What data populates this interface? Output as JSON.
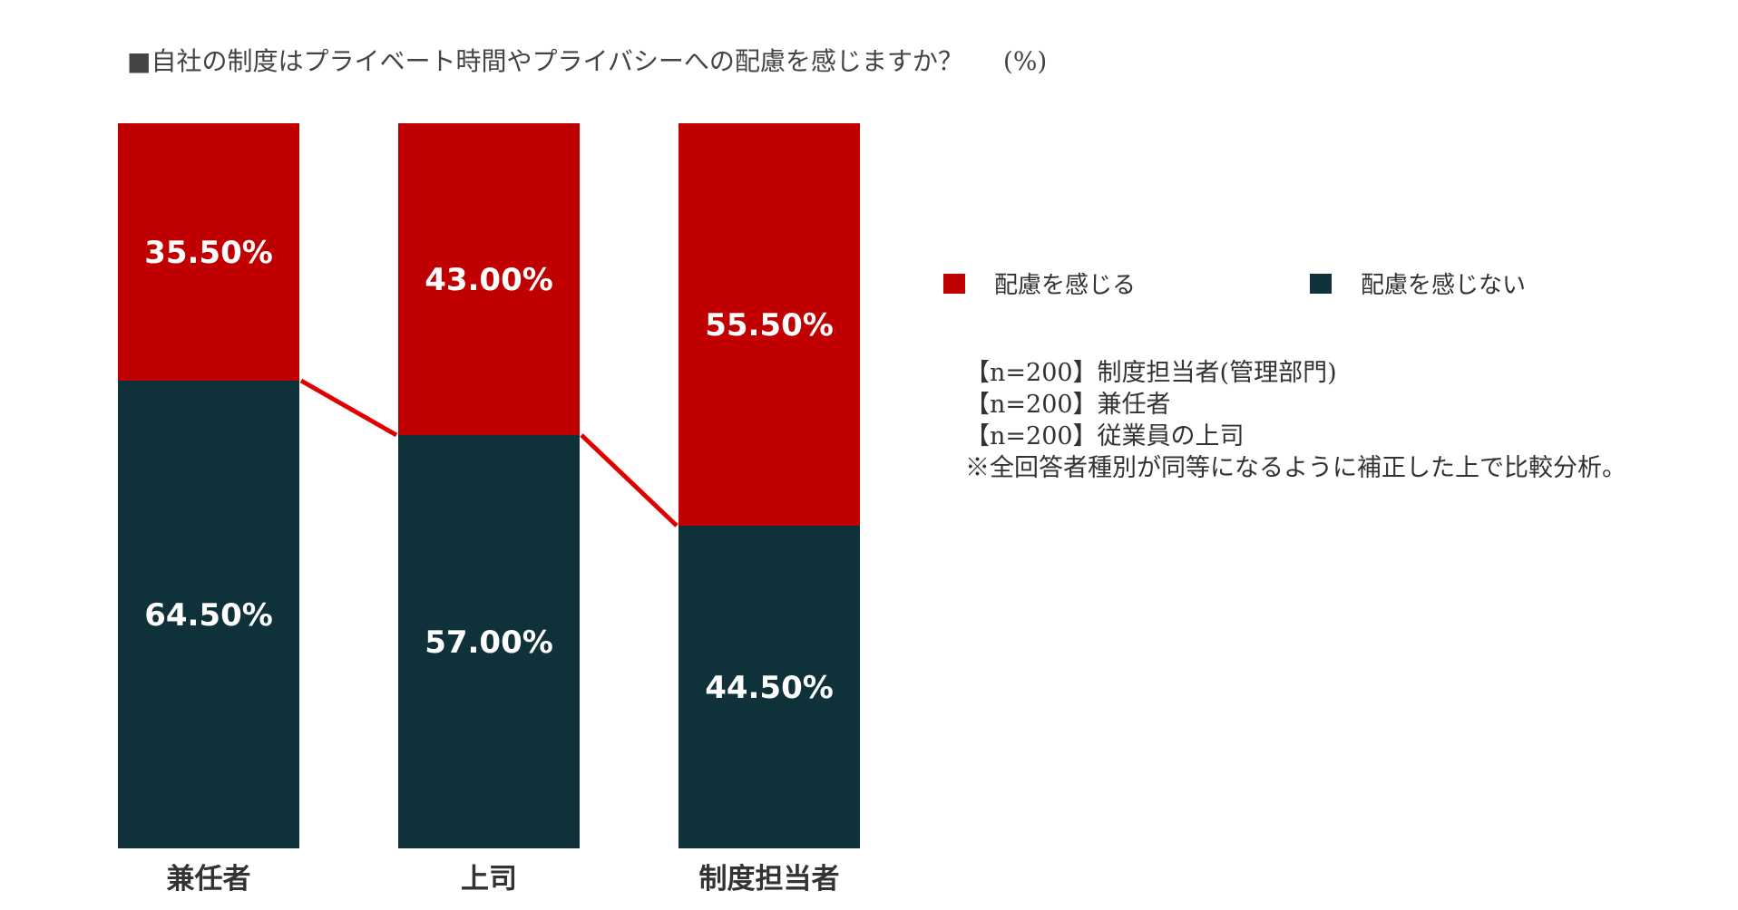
{
  "title": "■自社の制度はプライベート時間やプライバシーへの配慮を感じますか？",
  "unit": "(%)",
  "colors": {
    "feel": "#c00000",
    "not_feel": "#0f313a",
    "connector": "#e00000",
    "bar_label": "#ffffff",
    "axis_label": "#333333"
  },
  "legend": [
    {
      "label": "配慮を感じる",
      "color": "#c00000"
    },
    {
      "label": "配慮を感じない",
      "color": "#0f313a"
    }
  ],
  "notes": [
    "【n=200】制度担当者(管理部門)",
    "【n=200】兼任者",
    "【n=200】従業員の上司",
    "※全回答者種別が同等になるように補正した上で比較分析。"
  ],
  "chart_data": {
    "type": "bar",
    "stacked": true,
    "categories": [
      "兼任者",
      "上司",
      "制度担当者"
    ],
    "series": [
      {
        "name": "配慮を感じる",
        "values": [
          35.5,
          43.0,
          55.5
        ],
        "labels": [
          "35.50%",
          "43.00%",
          "55.50%"
        ]
      },
      {
        "name": "配慮を感じない",
        "values": [
          64.5,
          57.0,
          44.5
        ],
        "labels": [
          "64.50%",
          "57.00%",
          "44.50%"
        ]
      }
    ],
    "ylim": [
      0,
      100
    ],
    "grid": false,
    "legend_position": "right",
    "title": "■自社の制度はプライベート時間やプライバシーへの配慮を感じますか？",
    "xlabel": "",
    "ylabel": ""
  }
}
